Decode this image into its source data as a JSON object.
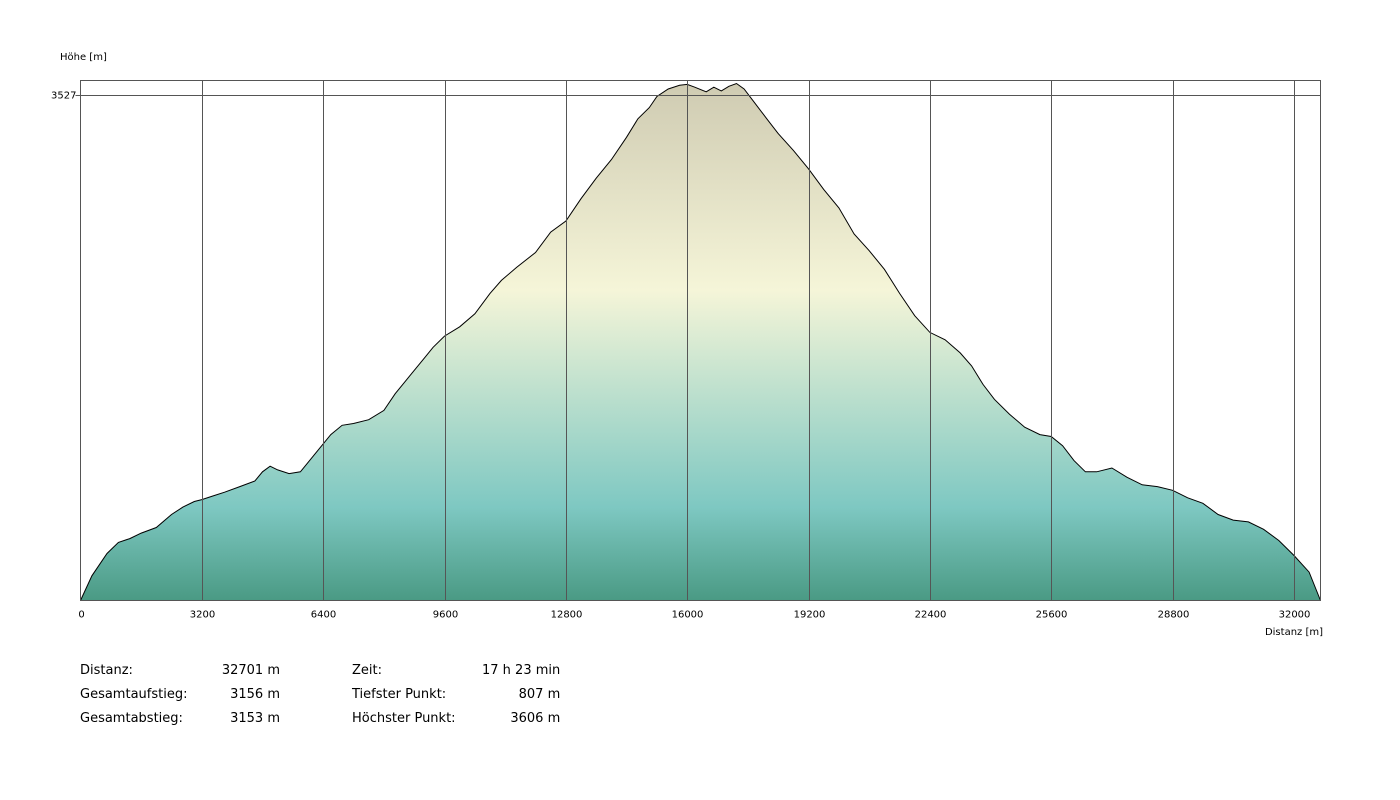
{
  "chart_data": {
    "type": "area",
    "ylabel": "Höhe [m]",
    "xlabel": "Distanz [m]",
    "xlim": [
      0,
      32701
    ],
    "ylim": [
      807,
      3606
    ],
    "x_ticks": [
      0,
      3200,
      6400,
      9600,
      12800,
      16000,
      19200,
      22400,
      25600,
      28800,
      32000
    ],
    "y_ticks": [
      3527
    ],
    "grid": true,
    "colors": {
      "bottom": "#4a9a84",
      "mid_low": "#7ec8c2",
      "mid": "#f5f5d8",
      "top": "#cfcbb2",
      "line": "#000000",
      "grid": "#555555"
    },
    "series": [
      {
        "x": [
          0,
          300,
          700,
          1000,
          1300,
          1600,
          2000,
          2400,
          2700,
          3000,
          3200,
          3500,
          3800,
          4200,
          4600,
          4800,
          5000,
          5200,
          5500,
          5800,
          6200,
          6600,
          6900,
          7200,
          7600,
          8000,
          8300,
          8700,
          9100,
          9300,
          9600,
          10000,
          10400,
          10800,
          11100,
          11500,
          12000,
          12400,
          12800,
          13200,
          13600,
          14000,
          14400,
          14700,
          15000,
          15200,
          15500,
          15800,
          16000,
          16200,
          16500,
          16700,
          16900,
          17100,
          17300,
          17500,
          17800,
          18100,
          18400,
          18800,
          19200,
          19600,
          20000,
          20400,
          20800,
          21200,
          21600,
          22000,
          22400,
          22800,
          23200,
          23500,
          23800,
          24100,
          24500,
          24900,
          25300,
          25600,
          25900,
          26200,
          26500,
          26800,
          27200,
          27600,
          28000,
          28400,
          28800,
          29200,
          29600,
          30000,
          30400,
          30800,
          31200,
          31600,
          32000,
          32400,
          32701
        ],
        "y": [
          807,
          940,
          1060,
          1120,
          1140,
          1170,
          1200,
          1270,
          1310,
          1340,
          1350,
          1370,
          1390,
          1420,
          1450,
          1500,
          1530,
          1510,
          1490,
          1500,
          1600,
          1700,
          1750,
          1760,
          1780,
          1830,
          1920,
          2020,
          2120,
          2170,
          2230,
          2280,
          2350,
          2460,
          2530,
          2600,
          2680,
          2790,
          2850,
          2970,
          3080,
          3180,
          3300,
          3400,
          3460,
          3520,
          3560,
          3580,
          3585,
          3570,
          3545,
          3570,
          3550,
          3575,
          3590,
          3560,
          3480,
          3400,
          3320,
          3230,
          3130,
          3020,
          2920,
          2780,
          2690,
          2590,
          2460,
          2340,
          2250,
          2210,
          2140,
          2070,
          1970,
          1890,
          1810,
          1740,
          1700,
          1690,
          1640,
          1560,
          1500,
          1500,
          1520,
          1470,
          1430,
          1420,
          1400,
          1360,
          1330,
          1270,
          1240,
          1230,
          1190,
          1130,
          1050,
          960,
          807
        ]
      }
    ]
  },
  "stats": {
    "distanz": {
      "label": "Distanz:",
      "value": "32701 m"
    },
    "aufstieg": {
      "label": "Gesamtaufstieg:",
      "value": "3156 m"
    },
    "abstieg": {
      "label": "Gesamtabstieg:",
      "value": "3153 m"
    },
    "zeit": {
      "label": "Zeit:",
      "value": "17 h 23 min"
    },
    "tiefster": {
      "label": "Tiefster Punkt:",
      "value": "807 m"
    },
    "hoechster": {
      "label": "Höchster Punkt:",
      "value": "3606 m"
    }
  }
}
